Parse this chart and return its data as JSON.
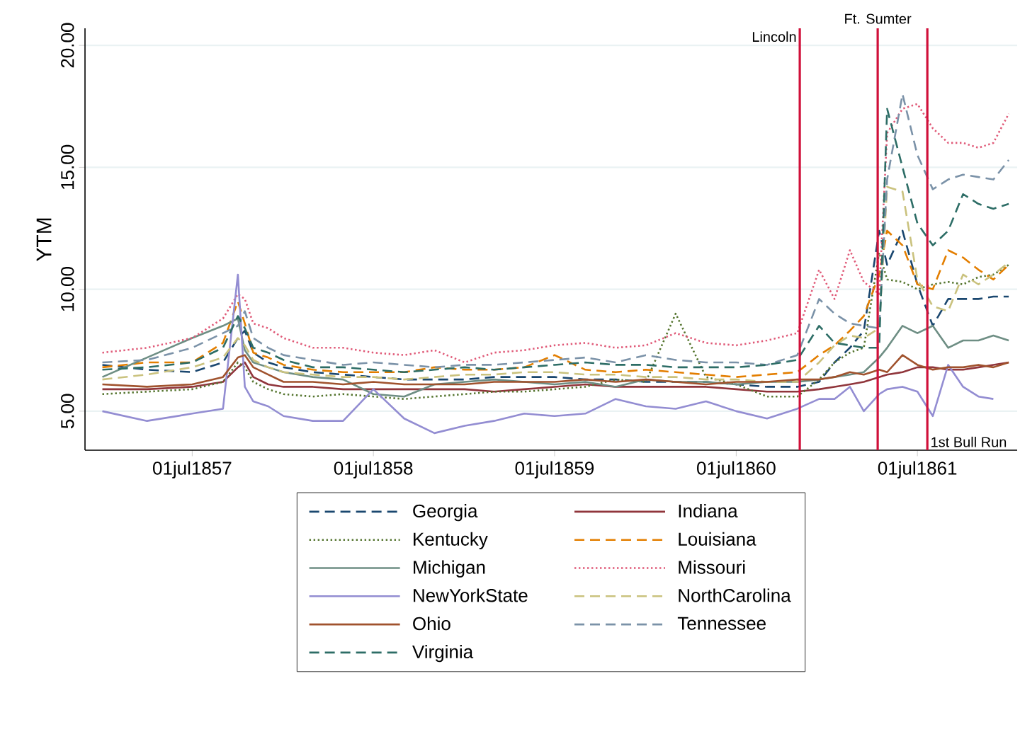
{
  "chart_data": {
    "type": "line",
    "ylabel": "YTM",
    "x": [
      "1857-01-01",
      "1857-04-01",
      "1857-07-01",
      "1857-09-01",
      "1857-10-01",
      "1857-10-15",
      "1857-11-01",
      "1857-12-01",
      "1858-01-01",
      "1858-03-01",
      "1858-05-01",
      "1858-07-01",
      "1858-09-01",
      "1858-11-01",
      "1859-01-01",
      "1859-03-01",
      "1859-05-01",
      "1859-07-01",
      "1859-09-01",
      "1859-11-01",
      "1860-01-01",
      "1860-03-01",
      "1860-05-01",
      "1860-07-01",
      "1860-09-01",
      "1860-11-01",
      "1860-12-15",
      "1861-01-15",
      "1861-02-15",
      "1861-03-15",
      "1861-04-15",
      "1861-05-01",
      "1861-06-01",
      "1861-07-01",
      "1861-08-01",
      "1861-09-01",
      "1861-10-01",
      "1861-11-01",
      "1861-12-01",
      "1862-01-01"
    ],
    "series": [
      {
        "name": "Georgia",
        "color": "#1a476f",
        "line_style": "dashed",
        "values": [
          6.9,
          6.7,
          6.6,
          7.0,
          8.0,
          8.3,
          7.4,
          7.0,
          6.8,
          6.6,
          6.5,
          6.4,
          6.3,
          6.3,
          6.3,
          6.4,
          6.4,
          6.4,
          6.3,
          6.3,
          6.2,
          6.2,
          6.2,
          6.1,
          6.0,
          6.0,
          6.2,
          7.0,
          7.6,
          8.3,
          12.4,
          11.0,
          12.4,
          10.2,
          8.5,
          9.6,
          9.6,
          9.6,
          9.7,
          9.7
        ]
      },
      {
        "name": "Indiana",
        "color": "#90353b",
        "line_style": "solid",
        "values": [
          5.9,
          5.9,
          6.0,
          6.2,
          6.8,
          7.0,
          6.4,
          6.1,
          6.0,
          6.0,
          5.9,
          5.9,
          5.9,
          5.9,
          5.9,
          5.8,
          5.9,
          6.0,
          6.1,
          6.0,
          6.0,
          6.0,
          6.0,
          5.9,
          5.8,
          5.8,
          5.9,
          6.0,
          6.1,
          6.2,
          6.4,
          6.5,
          6.6,
          6.8,
          6.8,
          6.7,
          6.7,
          6.8,
          6.9,
          7.0
        ]
      },
      {
        "name": "Kentucky",
        "color": "#55752f",
        "line_style": "dotted",
        "values": [
          5.7,
          5.8,
          5.9,
          6.2,
          7.0,
          6.8,
          6.2,
          5.9,
          5.7,
          5.6,
          5.7,
          5.6,
          5.5,
          5.6,
          5.7,
          5.8,
          5.8,
          5.9,
          6.0,
          6.3,
          6.2,
          9.0,
          6.4,
          6.1,
          5.6,
          5.6,
          6.3,
          7.0,
          7.4,
          7.6,
          11.5,
          10.4,
          10.3,
          10.0,
          10.2,
          10.3,
          10.2,
          10.5,
          10.6,
          11.0
        ]
      },
      {
        "name": "Louisiana",
        "color": "#e37e00",
        "line_style": "dashed",
        "values": [
          6.8,
          7.0,
          7.0,
          7.8,
          9.5,
          8.6,
          7.4,
          7.2,
          6.9,
          6.7,
          6.6,
          6.6,
          6.6,
          6.8,
          6.7,
          6.7,
          6.8,
          7.3,
          6.7,
          6.6,
          6.7,
          6.6,
          6.5,
          6.4,
          6.5,
          6.6,
          7.3,
          7.7,
          8.3,
          8.9,
          10.6,
          12.4,
          11.8,
          10.2,
          10.0,
          11.6,
          11.3,
          10.8,
          10.4,
          11.0
        ]
      },
      {
        "name": "Michigan",
        "color": "#6e8e84",
        "line_style": "solid",
        "values": [
          6.4,
          7.2,
          8.0,
          8.5,
          8.8,
          7.5,
          7.0,
          6.8,
          6.6,
          6.4,
          6.3,
          5.7,
          5.6,
          6.1,
          6.2,
          6.3,
          6.2,
          6.1,
          6.2,
          6.0,
          6.3,
          6.2,
          6.2,
          6.1,
          6.2,
          6.2,
          6.3,
          6.4,
          6.5,
          6.6,
          7.2,
          7.6,
          8.5,
          8.2,
          8.5,
          7.6,
          7.9,
          7.9,
          8.1,
          7.9
        ]
      },
      {
        "name": "Missouri",
        "color": "#e05a78",
        "line_style": "dotted",
        "values": [
          7.4,
          7.6,
          8.0,
          8.8,
          9.8,
          9.6,
          8.6,
          8.4,
          8.0,
          7.6,
          7.6,
          7.4,
          7.3,
          7.5,
          7.0,
          7.4,
          7.5,
          7.7,
          7.8,
          7.6,
          7.7,
          8.2,
          7.8,
          7.7,
          7.9,
          8.2,
          10.8,
          9.6,
          11.6,
          10.3,
          9.8,
          16.4,
          17.4,
          17.6,
          16.6,
          16.0,
          16.0,
          15.8,
          16.0,
          17.2
        ]
      },
      {
        "name": "NewYorkState",
        "color": "#938dd2",
        "line_style": "solid",
        "values": [
          5.0,
          4.6,
          4.9,
          5.1,
          10.6,
          6.0,
          5.4,
          5.2,
          4.8,
          4.6,
          4.6,
          5.9,
          4.7,
          4.1,
          4.4,
          4.6,
          4.9,
          4.8,
          4.9,
          5.5,
          5.2,
          5.1,
          5.4,
          5.0,
          4.7,
          5.1,
          5.5,
          5.5,
          6.0,
          5.0,
          5.7,
          5.9,
          6.0,
          5.8,
          4.8,
          6.9,
          6.0,
          5.6,
          5.5,
          null
        ]
      },
      {
        "name": "NorthCarolina",
        "color": "#cac27e",
        "line_style": "dashed",
        "values": [
          6.3,
          6.5,
          6.8,
          7.2,
          8.0,
          7.7,
          7.1,
          6.8,
          6.6,
          6.5,
          6.4,
          6.4,
          6.3,
          6.4,
          6.5,
          6.5,
          6.6,
          6.6,
          6.5,
          6.5,
          6.4,
          6.4,
          6.3,
          6.3,
          6.2,
          6.2,
          7.0,
          7.7,
          8.1,
          8.0,
          8.4,
          14.2,
          14.0,
          10.4,
          9.3,
          9.1,
          10.6,
          10.2,
          10.6,
          11.1
        ]
      },
      {
        "name": "Ohio",
        "color": "#a0522d",
        "line_style": "solid",
        "values": [
          6.1,
          6.0,
          6.1,
          6.4,
          7.2,
          7.3,
          6.8,
          6.5,
          6.2,
          6.2,
          6.1,
          6.2,
          6.1,
          6.1,
          6.1,
          6.2,
          6.2,
          6.2,
          6.3,
          6.2,
          6.3,
          6.2,
          6.1,
          6.2,
          6.2,
          6.3,
          6.3,
          6.4,
          6.6,
          6.5,
          6.7,
          6.6,
          7.3,
          6.9,
          6.7,
          6.8,
          6.8,
          6.9,
          6.8,
          7.0
        ]
      },
      {
        "name": "Tennessee",
        "color": "#7b92a8",
        "line_style": "dashed",
        "values": [
          7.0,
          7.1,
          7.6,
          8.2,
          8.5,
          9.1,
          8.0,
          7.6,
          7.3,
          7.1,
          6.9,
          7.0,
          6.9,
          6.8,
          6.9,
          6.9,
          7.0,
          7.1,
          7.2,
          7.0,
          7.3,
          7.1,
          7.0,
          7.0,
          6.9,
          7.3,
          9.6,
          9.0,
          8.6,
          8.5,
          8.4,
          14.5,
          18.0,
          15.5,
          14.1,
          14.5,
          14.7,
          14.6,
          14.5,
          15.3
        ]
      },
      {
        "name": "Virginia",
        "color": "#2d6d66",
        "line_style": "dashed",
        "values": [
          6.7,
          6.8,
          7.0,
          7.6,
          8.9,
          8.4,
          7.6,
          7.4,
          7.1,
          6.8,
          6.8,
          6.7,
          6.6,
          6.7,
          6.8,
          6.7,
          6.8,
          6.9,
          7.0,
          6.9,
          6.9,
          6.8,
          6.8,
          6.8,
          6.9,
          7.1,
          8.5,
          7.8,
          7.7,
          7.6,
          7.6,
          17.4,
          15.0,
          12.7,
          11.8,
          12.4,
          13.9,
          13.5,
          13.3,
          13.5
        ]
      }
    ],
    "xlim": [
      "1856-11-27",
      "1862-01-18"
    ],
    "xticks": [
      {
        "value": "1857-07-01",
        "label": "01jul1857"
      },
      {
        "value": "1858-07-01",
        "label": "01jul1858"
      },
      {
        "value": "1859-07-01",
        "label": "01jul1859"
      },
      {
        "value": "1860-07-01",
        "label": "01jul1860"
      },
      {
        "value": "1861-07-01",
        "label": "01jul1861"
      }
    ],
    "ylim": [
      3.4,
      20.7
    ],
    "yticks": [
      {
        "value": 5,
        "label": "5.00"
      },
      {
        "value": 10,
        "label": "10.00"
      },
      {
        "value": 15,
        "label": "15.00"
      },
      {
        "value": 20,
        "label": "20.00"
      }
    ],
    "ref_lines": [
      {
        "axis": "x",
        "value": "1860-11-06",
        "label": "Lincoln",
        "color": "#d0103a"
      },
      {
        "axis": "x",
        "value": "1861-04-12",
        "label": "Ft. Sumter",
        "color": "#d0103a"
      },
      {
        "axis": "x",
        "value": "1861-07-21",
        "label": "1st Bull Run",
        "color": "#d0103a"
      }
    ],
    "grid": "y",
    "legend": "bottom"
  }
}
